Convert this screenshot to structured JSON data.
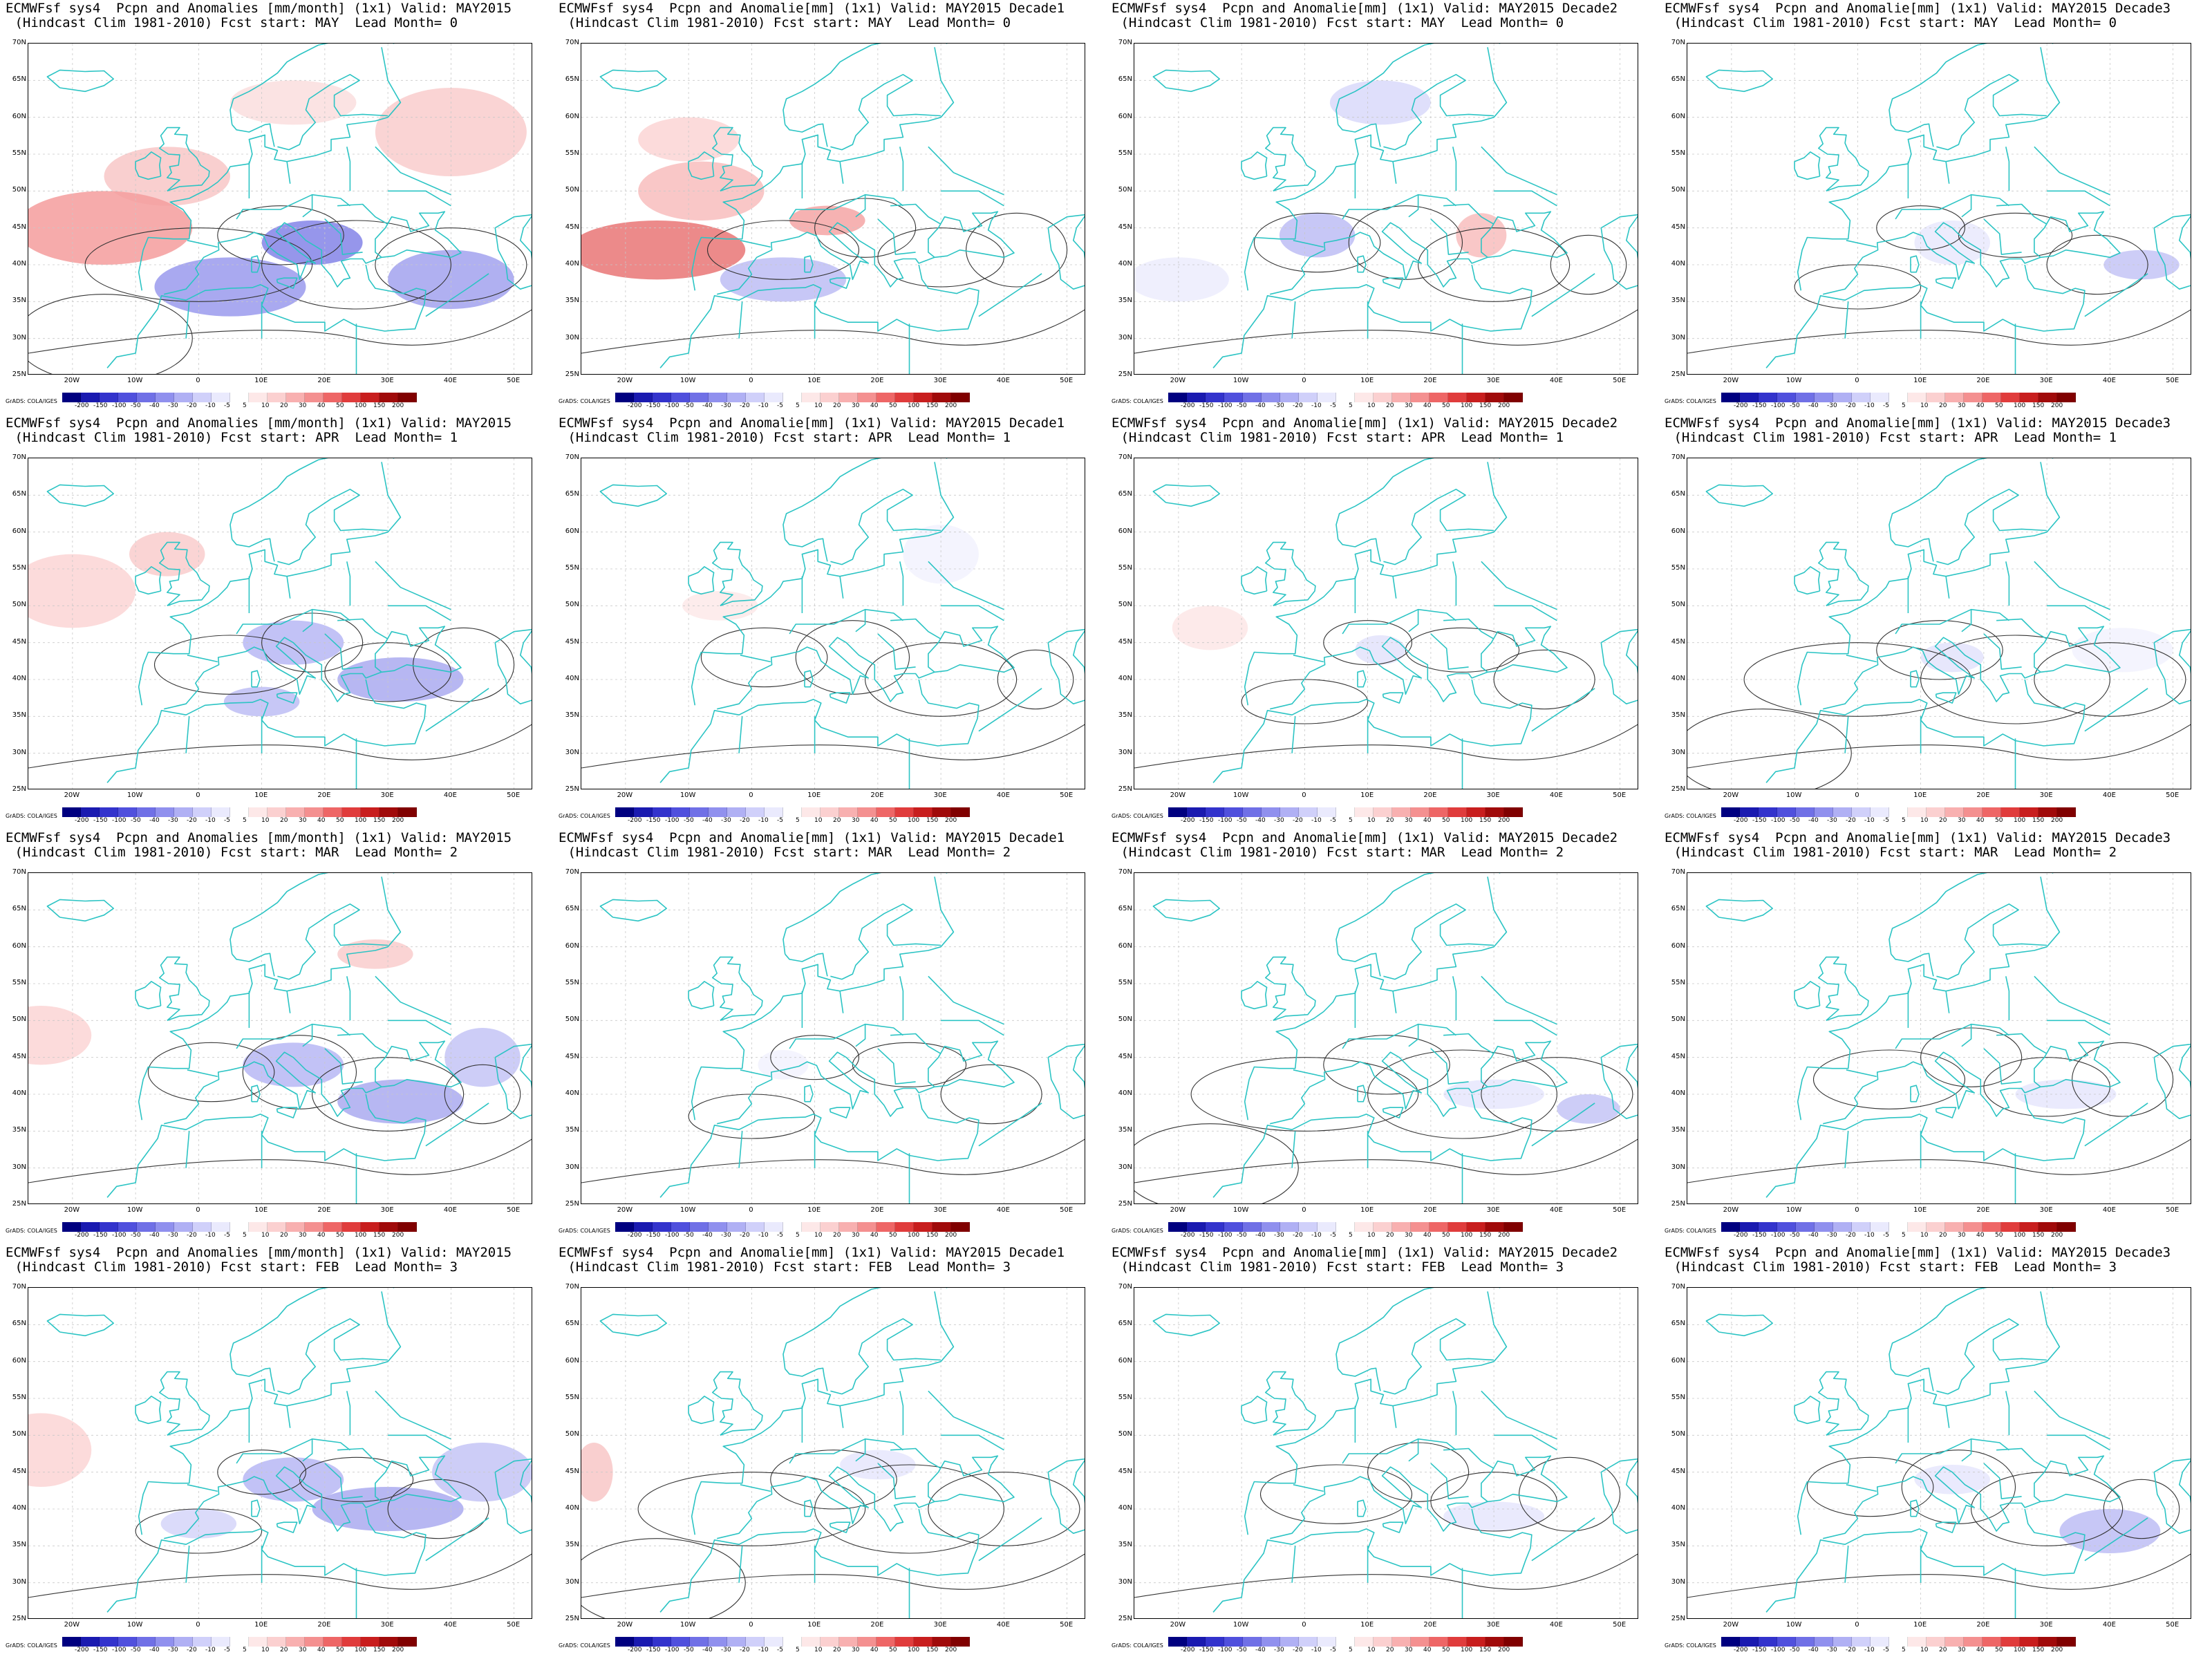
{
  "figure": {
    "rows": [
      {
        "lead": "0",
        "start": "MAY",
        "panels": [
          {
            "l1": "ECMWFsf sys4  Pcpn and Anomalies [mm/month] (1x1) Valid: MAY2015",
            "l2": " (Hindcast Clim 1981-2010) Fcst start: MAY  Lead Month= 0"
          },
          {
            "l1": "ECMWFsf sys4  Pcpn and Anomalie[mm] (1x1) Valid: MAY2015 Decade1",
            "l2": " (Hindcast Clim 1981-2010) Fcst start: MAY  Lead Month= 0"
          },
          {
            "l1": "ECMWFsf sys4  Pcpn and Anomalie[mm] (1x1) Valid: MAY2015 Decade2",
            "l2": " (Hindcast Clim 1981-2010) Fcst start: MAY  Lead Month= 0"
          },
          {
            "l1": "ECMWFsf sys4  Pcpn and Anomalie[mm] (1x1) Valid: MAY2015 Decade3",
            "l2": " (Hindcast Clim 1981-2010) Fcst start: MAY  Lead Month= 0"
          }
        ]
      },
      {
        "lead": "1",
        "start": "APR",
        "panels": [
          {
            "l1": "ECMWFsf sys4  Pcpn and Anomalies [mm/month] (1x1) Valid: MAY2015",
            "l2": " (Hindcast Clim 1981-2010) Fcst start: APR  Lead Month= 1"
          },
          {
            "l1": "ECMWFsf sys4  Pcpn and Anomalie[mm] (1x1) Valid: MAY2015 Decade1",
            "l2": " (Hindcast Clim 1981-2010) Fcst start: APR  Lead Month= 1"
          },
          {
            "l1": "ECMWFsf sys4  Pcpn and Anomalie[mm] (1x1) Valid: MAY2015 Decade2",
            "l2": " (Hindcast Clim 1981-2010) Fcst start: APR  Lead Month= 1"
          },
          {
            "l1": "ECMWFsf sys4  Pcpn and Anomalie[mm] (1x1) Valid: MAY2015 Decade3",
            "l2": " (Hindcast Clim 1981-2010) Fcst start: APR  Lead Month= 1"
          }
        ]
      },
      {
        "lead": "2",
        "start": "MAR",
        "panels": [
          {
            "l1": "ECMWFsf sys4  Pcpn and Anomalies [mm/month] (1x1) Valid: MAY2015",
            "l2": " (Hindcast Clim 1981-2010) Fcst start: MAR  Lead Month= 2"
          },
          {
            "l1": "ECMWFsf sys4  Pcpn and Anomalie[mm] (1x1) Valid: MAY2015 Decade1",
            "l2": " (Hindcast Clim 1981-2010) Fcst start: MAR  Lead Month= 2"
          },
          {
            "l1": "ECMWFsf sys4  Pcpn and Anomalie[mm] (1x1) Valid: MAY2015 Decade2",
            "l2": " (Hindcast Clim 1981-2010) Fcst start: MAR  Lead Month= 2"
          },
          {
            "l1": "ECMWFsf sys4  Pcpn and Anomalie[mm] (1x1) Valid: MAY2015 Decade3",
            "l2": " (Hindcast Clim 1981-2010) Fcst start: MAR  Lead Month= 2"
          }
        ]
      },
      {
        "lead": "3",
        "start": "FEB",
        "panels": [
          {
            "l1": "ECMWFsf sys4  Pcpn and Anomalies [mm/month] (1x1) Valid: MAY2015",
            "l2": " (Hindcast Clim 1981-2010) Fcst start: FEB  Lead Month= 3"
          },
          {
            "l1": "ECMWFsf sys4  Pcpn and Anomalie[mm] (1x1) Valid: MAY2015 Decade1",
            "l2": " (Hindcast Clim 1981-2010) Fcst start: FEB  Lead Month= 3"
          },
          {
            "l1": "ECMWFsf sys4  Pcpn and Anomalie[mm] (1x1) Valid: MAY2015 Decade2",
            "l2": " (Hindcast Clim 1981-2010) Fcst start: FEB  Lead Month= 3"
          },
          {
            "l1": "ECMWFsf sys4  Pcpn and Anomalie[mm] (1x1) Valid: MAY2015 Decade3",
            "l2": " (Hindcast Clim 1981-2010) Fcst start: FEB  Lead Month= 3"
          }
        ]
      }
    ]
  },
  "axes": {
    "lat_labels": [
      "70N",
      "65N",
      "60N",
      "55N",
      "50N",
      "45N",
      "40N",
      "35N",
      "30N",
      "25N"
    ],
    "lon_labels": [
      "20W",
      "10W",
      "0",
      "10E",
      "20E",
      "30E",
      "40E",
      "50E"
    ],
    "lat_range": [
      25,
      70
    ],
    "lon_range": [
      -27,
      53
    ]
  },
  "credit": "GrADS: COLA/IGES",
  "colorbar": {
    "labels": [
      "-200",
      "-150",
      "-100",
      "-50",
      "-40",
      "-30",
      "-20",
      "-10",
      "-5",
      "5",
      "10",
      "20",
      "30",
      "40",
      "50",
      "100",
      "150",
      "200"
    ],
    "colors": [
      "#000080",
      "#1a1ab0",
      "#3333cc",
      "#5050dd",
      "#7070e6",
      "#9090ee",
      "#b0b0f4",
      "#d0d0fa",
      "#eaeafd",
      "#ffffff",
      "#fde8e8",
      "#fbd0d0",
      "#f8b0b0",
      "#f49090",
      "#ee6666",
      "#e03c3c",
      "#c81e1e",
      "#a00a0a",
      "#800000"
    ]
  },
  "colors": {
    "coast": "#2cc4c4",
    "contour": "#333333",
    "grid": "#c8c8c8"
  }
}
